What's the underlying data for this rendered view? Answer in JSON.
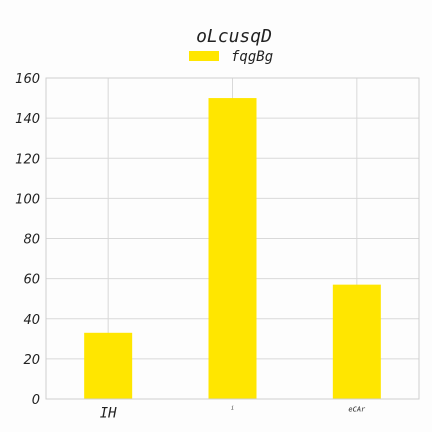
{
  "chart_data": {
    "type": "bar",
    "title": "oLcusqD",
    "categories": [
      "IH",
      "i",
      "eCAr"
    ],
    "series": [
      {
        "name": "fqgBg",
        "values": [
          33,
          150,
          57
        ],
        "color": "#ffe600"
      }
    ],
    "xlabel": "",
    "ylabel": "",
    "ylim": [
      0,
      160
    ],
    "yticks": [
      0,
      20,
      40,
      60,
      80,
      100,
      120,
      140,
      160
    ],
    "grid": true,
    "legend_position": "top-center"
  }
}
